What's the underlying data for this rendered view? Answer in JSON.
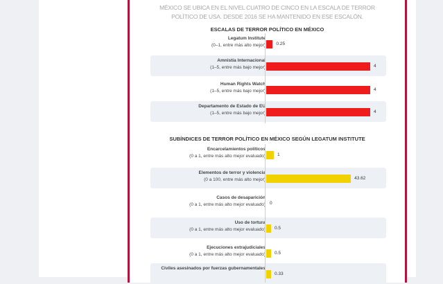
{
  "intro": [
    "MÉXICO SE UBICA EN EL NIVEL CUATRO DE CINCO EN LA ESCALA DE TERROR",
    "POLÍTICO DE USA. DESDE 2016 SE HA MANTENIDO EN ESE ESCALÓN."
  ],
  "colors": {
    "frame": "#b3123a",
    "bar_red": "#ee1c1c",
    "bar_yellow": "#f2d100"
  },
  "chart_data": [
    {
      "type": "bar",
      "title": "ESCALAS DE TERROR POLÍTICO EN MÉXICO",
      "rows": [
        {
          "name": "Legatum Institute",
          "note": "(0–1, entre más alto mejor)",
          "value": 0.25,
          "label": "0.25"
        },
        {
          "name": "Amnistía Internacional",
          "note": "(1–5, entre más bajo mejor)",
          "value": 4,
          "label": "4"
        },
        {
          "name": "Human Rights Watch",
          "note": "(1–5, entre más bajo mejor)",
          "value": 4,
          "label": "4"
        },
        {
          "name": "Departamento de Estado de EU",
          "note": "(1–5, entre más bajo mejor)",
          "value": 4,
          "label": "4"
        }
      ]
    },
    {
      "type": "bar",
      "title": "SUBÍNDICES DE TERROR POLÍTICO EN MÉXICO SEGÚN LEGATUM INSTITUTE",
      "rows": [
        {
          "name": "Encarcelamientos políticos",
          "note": "(0 a 1, entre más alto mejor evaluado)",
          "value": 1,
          "label": "1"
        },
        {
          "name": "Elementos de terror y violencia",
          "note": "(0 a 100, entre más alto mejor)",
          "value": 43.62,
          "label": "43.62"
        },
        {
          "name": "Casos de desaparición",
          "note": "(0 a 1, entre más alto mejor evaluado)",
          "value": 0,
          "label": "0"
        },
        {
          "name": "Uso de tortura",
          "note": "(0 a 1, entre más alto mejor evaluado)",
          "value": 0.5,
          "label": "0.5"
        },
        {
          "name": "Ejecuciones extrajudiciales",
          "note": "(0 a 1, entre más alto mejor evaluado)",
          "value": 0.5,
          "label": "0.5"
        },
        {
          "name": "Civiles asesinados por fuerzas gubernamentales",
          "note": "",
          "value": 0.33,
          "label": "0.33"
        }
      ]
    }
  ]
}
